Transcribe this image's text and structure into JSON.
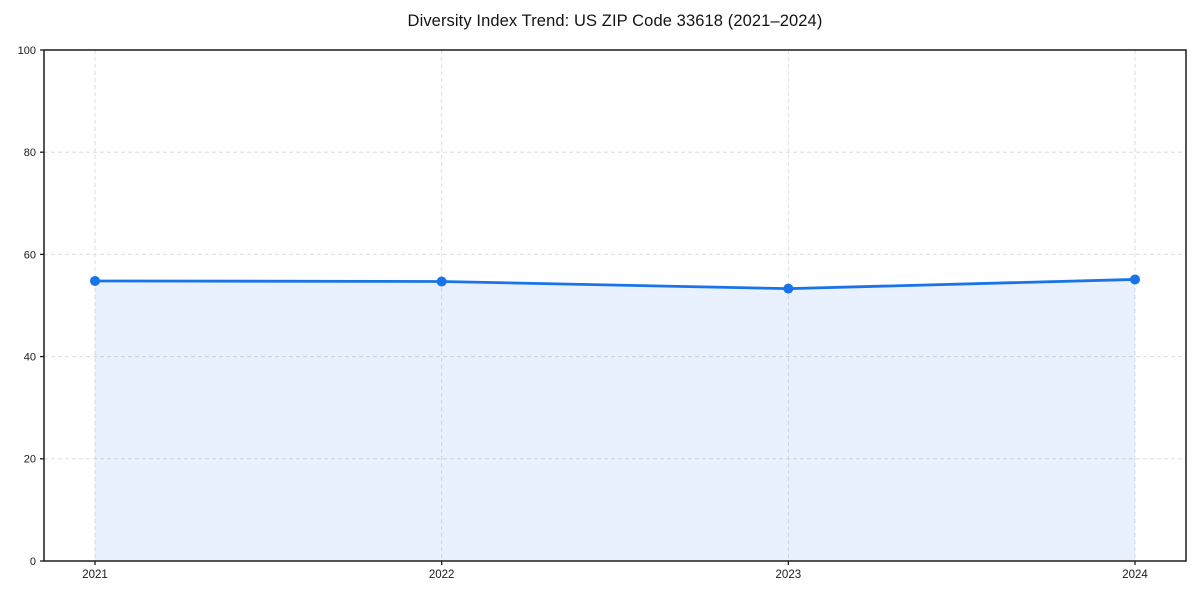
{
  "page": {
    "background_color": "#ffffff"
  },
  "chart_data": {
    "type": "area",
    "title": "Diversity Index Trend: US ZIP Code 33618 (2021–2024)",
    "categories": [
      "2021",
      "2022",
      "2023",
      "2024"
    ],
    "series": [
      {
        "name": "Diversity Index",
        "values": [
          54.8,
          54.7,
          53.3,
          55.1
        ]
      }
    ],
    "xlabel": "",
    "ylabel": "",
    "ylim": [
      0,
      100
    ],
    "yticks": [
      0,
      20,
      40,
      60,
      80,
      100
    ],
    "grid": true,
    "grid_style": "dashed",
    "legend": "none",
    "line_color": "#1a73e8",
    "fill_color": "rgba(26,115,232,0.10)",
    "marker": "circle",
    "grid_color": "#dedede",
    "border_color": "#1c1c1c",
    "tick_label_color": "#1a1a1a"
  }
}
